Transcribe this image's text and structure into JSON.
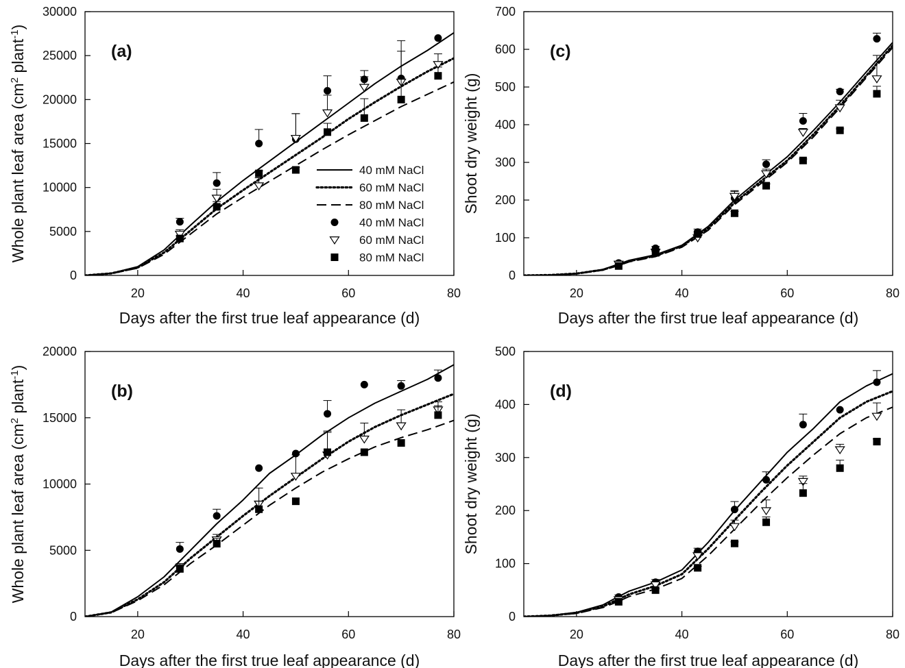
{
  "legend_entries": [
    {
      "label": "40 mM NaCl",
      "kind": "line",
      "series": "40"
    },
    {
      "label": "60 mM NaCl",
      "kind": "line",
      "series": "60"
    },
    {
      "label": "80 mM NaCl",
      "kind": "line",
      "series": "80"
    },
    {
      "label": "40 mM NaCl",
      "kind": "marker",
      "series": "40"
    },
    {
      "label": "60 mM NaCl",
      "kind": "marker",
      "series": "60"
    },
    {
      "label": "80 mM NaCl",
      "kind": "marker",
      "series": "80"
    }
  ],
  "chart_data": [
    {
      "type": "line",
      "panel_label": "(a)",
      "xlabel": "Days after the first true leaf appearance (d)",
      "ylabel": "Whole plant leaf area (cm² plant⁻¹)",
      "ylabel_parts": {
        "base": "Whole plant leaf area (cm",
        "sup1": "2",
        "mid": " plant",
        "sup2": "-1",
        "end": ")"
      },
      "xlim": [
        10,
        80
      ],
      "ylim": [
        0,
        30000
      ],
      "xticks": [
        20,
        40,
        60,
        80
      ],
      "yticks": [
        0,
        5000,
        10000,
        15000,
        20000,
        25000,
        30000
      ],
      "grid": false,
      "legend": "center-right",
      "series": [
        {
          "name": "40 mM NaCl",
          "kind": "line",
          "style": "solid",
          "x": [
            10,
            15,
            20,
            25,
            30,
            35,
            40,
            45,
            50,
            55,
            60,
            65,
            70,
            75,
            80
          ],
          "y": [
            0,
            250,
            1000,
            2900,
            5700,
            8400,
            10800,
            13000,
            15200,
            17400,
            19600,
            21800,
            23800,
            25600,
            27600
          ]
        },
        {
          "name": "60 mM NaCl",
          "kind": "line",
          "style": "dotted",
          "x": [
            10,
            15,
            20,
            25,
            30,
            35,
            40,
            45,
            50,
            55,
            60,
            65,
            70,
            75,
            80
          ],
          "y": [
            0,
            230,
            900,
            2600,
            5100,
            7600,
            9700,
            11700,
            13700,
            15700,
            17800,
            19700,
            21500,
            23200,
            24700
          ]
        },
        {
          "name": "80 mM NaCl",
          "kind": "line",
          "style": "dashed",
          "x": [
            10,
            15,
            20,
            25,
            30,
            35,
            40,
            45,
            50,
            55,
            60,
            65,
            70,
            75,
            80
          ],
          "y": [
            0,
            210,
            830,
            2400,
            4700,
            7000,
            8900,
            10700,
            12500,
            14300,
            16000,
            17600,
            19200,
            20600,
            22000
          ]
        },
        {
          "name": "40 mM NaCl",
          "kind": "marker",
          "marker": "filled-circle",
          "x": [
            28,
            35,
            43,
            50,
            56,
            63,
            70,
            77
          ],
          "y": [
            6100,
            10500,
            15000,
            15500,
            21000,
            22300,
            22400,
            27000
          ],
          "err": [
            400,
            1200,
            1600,
            2900,
            1700,
            1000,
            4300,
            0
          ]
        },
        {
          "name": "60 mM NaCl",
          "kind": "marker",
          "marker": "open-triangle-down",
          "x": [
            28,
            35,
            43,
            50,
            56,
            63,
            70,
            77
          ],
          "y": [
            4700,
            8800,
            10200,
            15600,
            18500,
            21400,
            22000,
            24000
          ],
          "err": [
            500,
            1000,
            900,
            2800,
            2000,
            1200,
            3500,
            1200
          ]
        },
        {
          "name": "80 mM NaCl",
          "kind": "marker",
          "marker": "filled-square",
          "x": [
            28,
            35,
            43,
            50,
            56,
            63,
            70,
            77
          ],
          "y": [
            4200,
            7800,
            11600,
            12000,
            16300,
            17900,
            20000,
            22700
          ],
          "err": [
            300,
            600,
            300,
            300,
            1000,
            2200,
            2300,
            1000
          ]
        }
      ]
    },
    {
      "type": "line",
      "panel_label": "(c)",
      "xlabel": "Days after the first true leaf appearance (d)",
      "ylabel": "Shoot dry weight (g)",
      "xlim": [
        10,
        80
      ],
      "ylim": [
        0,
        700
      ],
      "xticks": [
        20,
        40,
        60,
        80
      ],
      "yticks": [
        0,
        100,
        200,
        300,
        400,
        500,
        600,
        700
      ],
      "grid": false,
      "series": [
        {
          "name": "40 mM NaCl",
          "kind": "line",
          "style": "solid",
          "x": [
            10,
            15,
            20,
            25,
            28,
            30,
            35,
            40,
            45,
            50,
            55,
            60,
            65,
            70,
            75,
            80
          ],
          "y": [
            0,
            1,
            5,
            16,
            30,
            40,
            55,
            80,
            130,
            200,
            258,
            315,
            385,
            460,
            540,
            618
          ]
        },
        {
          "name": "60 mM NaCl",
          "kind": "line",
          "style": "dotted",
          "x": [
            10,
            15,
            20,
            25,
            28,
            30,
            35,
            40,
            45,
            50,
            55,
            60,
            65,
            70,
            75,
            80
          ],
          "y": [
            0,
            1,
            5,
            15,
            28,
            38,
            52,
            78,
            125,
            193,
            250,
            305,
            375,
            450,
            530,
            610
          ]
        },
        {
          "name": "80 mM NaCl",
          "kind": "line",
          "style": "dashed",
          "x": [
            10,
            15,
            20,
            25,
            28,
            30,
            35,
            40,
            45,
            50,
            55,
            60,
            65,
            70,
            75,
            80
          ],
          "y": [
            0,
            1,
            4,
            14,
            26,
            36,
            50,
            75,
            120,
            188,
            244,
            300,
            368,
            445,
            525,
            605
          ]
        },
        {
          "name": "40 mM NaCl",
          "kind": "marker",
          "marker": "filled-circle",
          "x": [
            28,
            35,
            43,
            50,
            56,
            63,
            70,
            77
          ],
          "y": [
            33,
            72,
            115,
            205,
            295,
            410,
            488,
            628
          ],
          "err": [
            5,
            5,
            8,
            18,
            12,
            20,
            6,
            15
          ]
        },
        {
          "name": "60 mM NaCl",
          "kind": "marker",
          "marker": "open-triangle-down",
          "x": [
            28,
            35,
            43,
            50,
            56,
            63,
            70,
            77
          ],
          "y": [
            30,
            62,
            100,
            210,
            270,
            380,
            445,
            522
          ],
          "err": [
            5,
            5,
            12,
            15,
            12,
            10,
            20,
            62
          ]
        },
        {
          "name": "80 mM NaCl",
          "kind": "marker",
          "marker": "filled-square",
          "x": [
            28,
            35,
            43,
            50,
            56,
            63,
            70,
            77
          ],
          "y": [
            25,
            60,
            110,
            165,
            238,
            305,
            385,
            482
          ],
          "err": [
            3,
            4,
            6,
            5,
            5,
            4,
            4,
            20
          ]
        }
      ]
    },
    {
      "type": "line",
      "panel_label": "(b)",
      "xlabel": "Days after the first true leaf appearance (d)",
      "ylabel": "Whole plant leaf area (cm² plant⁻¹)",
      "ylabel_parts": {
        "base": "Whole plant leaf area (cm",
        "sup1": "2",
        "mid": " plant",
        "sup2": "-1",
        "end": ")"
      },
      "xlim": [
        10,
        80
      ],
      "ylim": [
        0,
        20000
      ],
      "xticks": [
        20,
        40,
        60,
        80
      ],
      "yticks": [
        0,
        5000,
        10000,
        15000,
        20000
      ],
      "grid": false,
      "series": [
        {
          "name": "40 mM NaCl",
          "kind": "line",
          "style": "solid",
          "x": [
            10,
            15,
            20,
            25,
            30,
            35,
            40,
            45,
            50,
            55,
            60,
            65,
            70,
            75,
            80
          ],
          "y": [
            0,
            350,
            1500,
            3000,
            5000,
            7000,
            8800,
            10800,
            12200,
            13700,
            15000,
            16100,
            17000,
            17900,
            19000
          ]
        },
        {
          "name": "60 mM NaCl",
          "kind": "line",
          "style": "dotted",
          "x": [
            10,
            15,
            20,
            25,
            30,
            35,
            40,
            45,
            50,
            55,
            60,
            65,
            70,
            75,
            80
          ],
          "y": [
            0,
            320,
            1300,
            2600,
            4400,
            6000,
            7600,
            9100,
            10500,
            11900,
            13200,
            14300,
            15200,
            16000,
            16800
          ]
        },
        {
          "name": "80 mM NaCl",
          "kind": "line",
          "style": "dashed",
          "x": [
            10,
            15,
            20,
            25,
            30,
            35,
            40,
            45,
            50,
            55,
            60,
            65,
            70,
            75,
            80
          ],
          "y": [
            0,
            300,
            1200,
            2400,
            4000,
            5400,
            6900,
            8400,
            9700,
            10900,
            11900,
            12800,
            13500,
            14100,
            14800
          ]
        },
        {
          "name": "40 mM NaCl",
          "kind": "marker",
          "marker": "filled-circle",
          "x": [
            28,
            35,
            43,
            50,
            56,
            63,
            70,
            77
          ],
          "y": [
            5100,
            7600,
            11200,
            12300,
            15300,
            17500,
            17400,
            18000
          ],
          "err": [
            500,
            500,
            0,
            0,
            1000,
            0,
            400,
            600
          ]
        },
        {
          "name": "60 mM NaCl",
          "kind": "marker",
          "marker": "open-triangle-down",
          "x": [
            28,
            35,
            43,
            50,
            56,
            63,
            70,
            77
          ],
          "y": [
            3700,
            5800,
            8500,
            10600,
            12200,
            13400,
            14400,
            15600
          ],
          "err": [
            300,
            400,
            1200,
            1600,
            1800,
            1200,
            1200,
            600
          ]
        },
        {
          "name": "80 mM NaCl",
          "kind": "marker",
          "marker": "filled-square",
          "x": [
            28,
            35,
            43,
            50,
            56,
            63,
            70,
            77
          ],
          "y": [
            3600,
            5500,
            8100,
            8700,
            12400,
            12400,
            13100,
            15200
          ],
          "err": [
            200,
            400,
            600,
            0,
            1500,
            0,
            0,
            700
          ]
        }
      ]
    },
    {
      "type": "line",
      "panel_label": "(d)",
      "xlabel": "Days after the first true leaf appearance (d)",
      "ylabel": "Shoot dry weight (g)",
      "xlim": [
        10,
        80
      ],
      "ylim": [
        0,
        500
      ],
      "xticks": [
        20,
        40,
        60,
        80
      ],
      "yticks": [
        0,
        100,
        200,
        300,
        400,
        500
      ],
      "grid": false,
      "series": [
        {
          "name": "40 mM NaCl",
          "kind": "line",
          "style": "solid",
          "x": [
            10,
            15,
            20,
            25,
            28,
            30,
            35,
            40,
            45,
            50,
            55,
            60,
            65,
            70,
            75,
            80
          ],
          "y": [
            0,
            2,
            8,
            22,
            38,
            48,
            65,
            88,
            140,
            200,
            255,
            310,
            355,
            405,
            435,
            458
          ]
        },
        {
          "name": "60 mM NaCl",
          "kind": "line",
          "style": "dotted",
          "x": [
            10,
            15,
            20,
            25,
            28,
            30,
            35,
            40,
            45,
            50,
            55,
            60,
            65,
            70,
            75,
            80
          ],
          "y": [
            0,
            2,
            7,
            19,
            33,
            42,
            58,
            80,
            128,
            182,
            235,
            285,
            330,
            375,
            405,
            425
          ]
        },
        {
          "name": "80 mM NaCl",
          "kind": "line",
          "style": "dashed",
          "x": [
            10,
            15,
            20,
            25,
            28,
            30,
            35,
            40,
            45,
            50,
            55,
            60,
            65,
            70,
            75,
            80
          ],
          "y": [
            0,
            2,
            6,
            17,
            29,
            38,
            52,
            72,
            115,
            165,
            215,
            262,
            305,
            345,
            375,
            395
          ]
        },
        {
          "name": "40 mM NaCl",
          "kind": "marker",
          "marker": "filled-circle",
          "x": [
            28,
            35,
            43,
            50,
            56,
            63,
            70,
            77
          ],
          "y": [
            37,
            65,
            123,
            202,
            258,
            362,
            390,
            442
          ],
          "err": [
            4,
            5,
            6,
            15,
            15,
            20,
            0,
            22
          ]
        },
        {
          "name": "60 mM NaCl",
          "kind": "marker",
          "marker": "open-triangle-down",
          "x": [
            28,
            35,
            43,
            50,
            56,
            63,
            70,
            77
          ],
          "y": [
            32,
            60,
            115,
            170,
            200,
            255,
            315,
            378
          ],
          "err": [
            4,
            5,
            8,
            12,
            20,
            10,
            10,
            25
          ]
        },
        {
          "name": "80 mM NaCl",
          "kind": "marker",
          "marker": "filled-square",
          "x": [
            28,
            35,
            43,
            50,
            56,
            63,
            70,
            77
          ],
          "y": [
            28,
            50,
            92,
            138,
            178,
            233,
            280,
            330
          ],
          "err": [
            3,
            3,
            3,
            3,
            10,
            18,
            15,
            5
          ]
        }
      ]
    }
  ]
}
